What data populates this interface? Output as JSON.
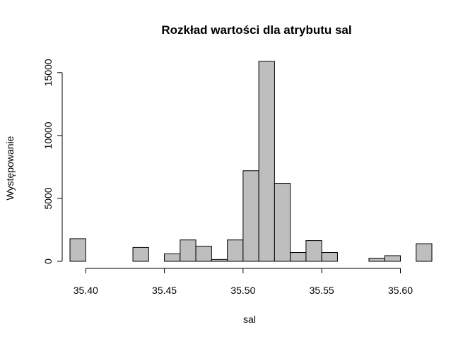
{
  "chart_data": {
    "type": "bar",
    "title": "Rozkład wartości dla atrybutu sal",
    "xlabel": "sal",
    "ylabel": "Występowanie",
    "xlim": [
      35.39,
      35.62
    ],
    "ylim": [
      0,
      16000
    ],
    "x_ticks": [
      "35.40",
      "35.45",
      "35.50",
      "35.55",
      "35.60"
    ],
    "x_tick_values": [
      35.4,
      35.45,
      35.5,
      35.55,
      35.6
    ],
    "y_ticks": [
      "0",
      "5000",
      "10000",
      "15000"
    ],
    "y_tick_values": [
      0,
      5000,
      10000,
      15000
    ],
    "grid": false,
    "bin_width": 0.01,
    "bin_starts": [
      35.39,
      35.4,
      35.41,
      35.42,
      35.43,
      35.44,
      35.45,
      35.46,
      35.47,
      35.48,
      35.49,
      35.5,
      35.51,
      35.52,
      35.53,
      35.54,
      35.55,
      35.56,
      35.57,
      35.58,
      35.59,
      35.6,
      35.61
    ],
    "values": [
      1800,
      0,
      0,
      0,
      1100,
      0,
      600,
      1700,
      1200,
      150,
      1700,
      7200,
      15900,
      6200,
      700,
      1650,
      700,
      0,
      0,
      250,
      450,
      0,
      1400
    ]
  }
}
